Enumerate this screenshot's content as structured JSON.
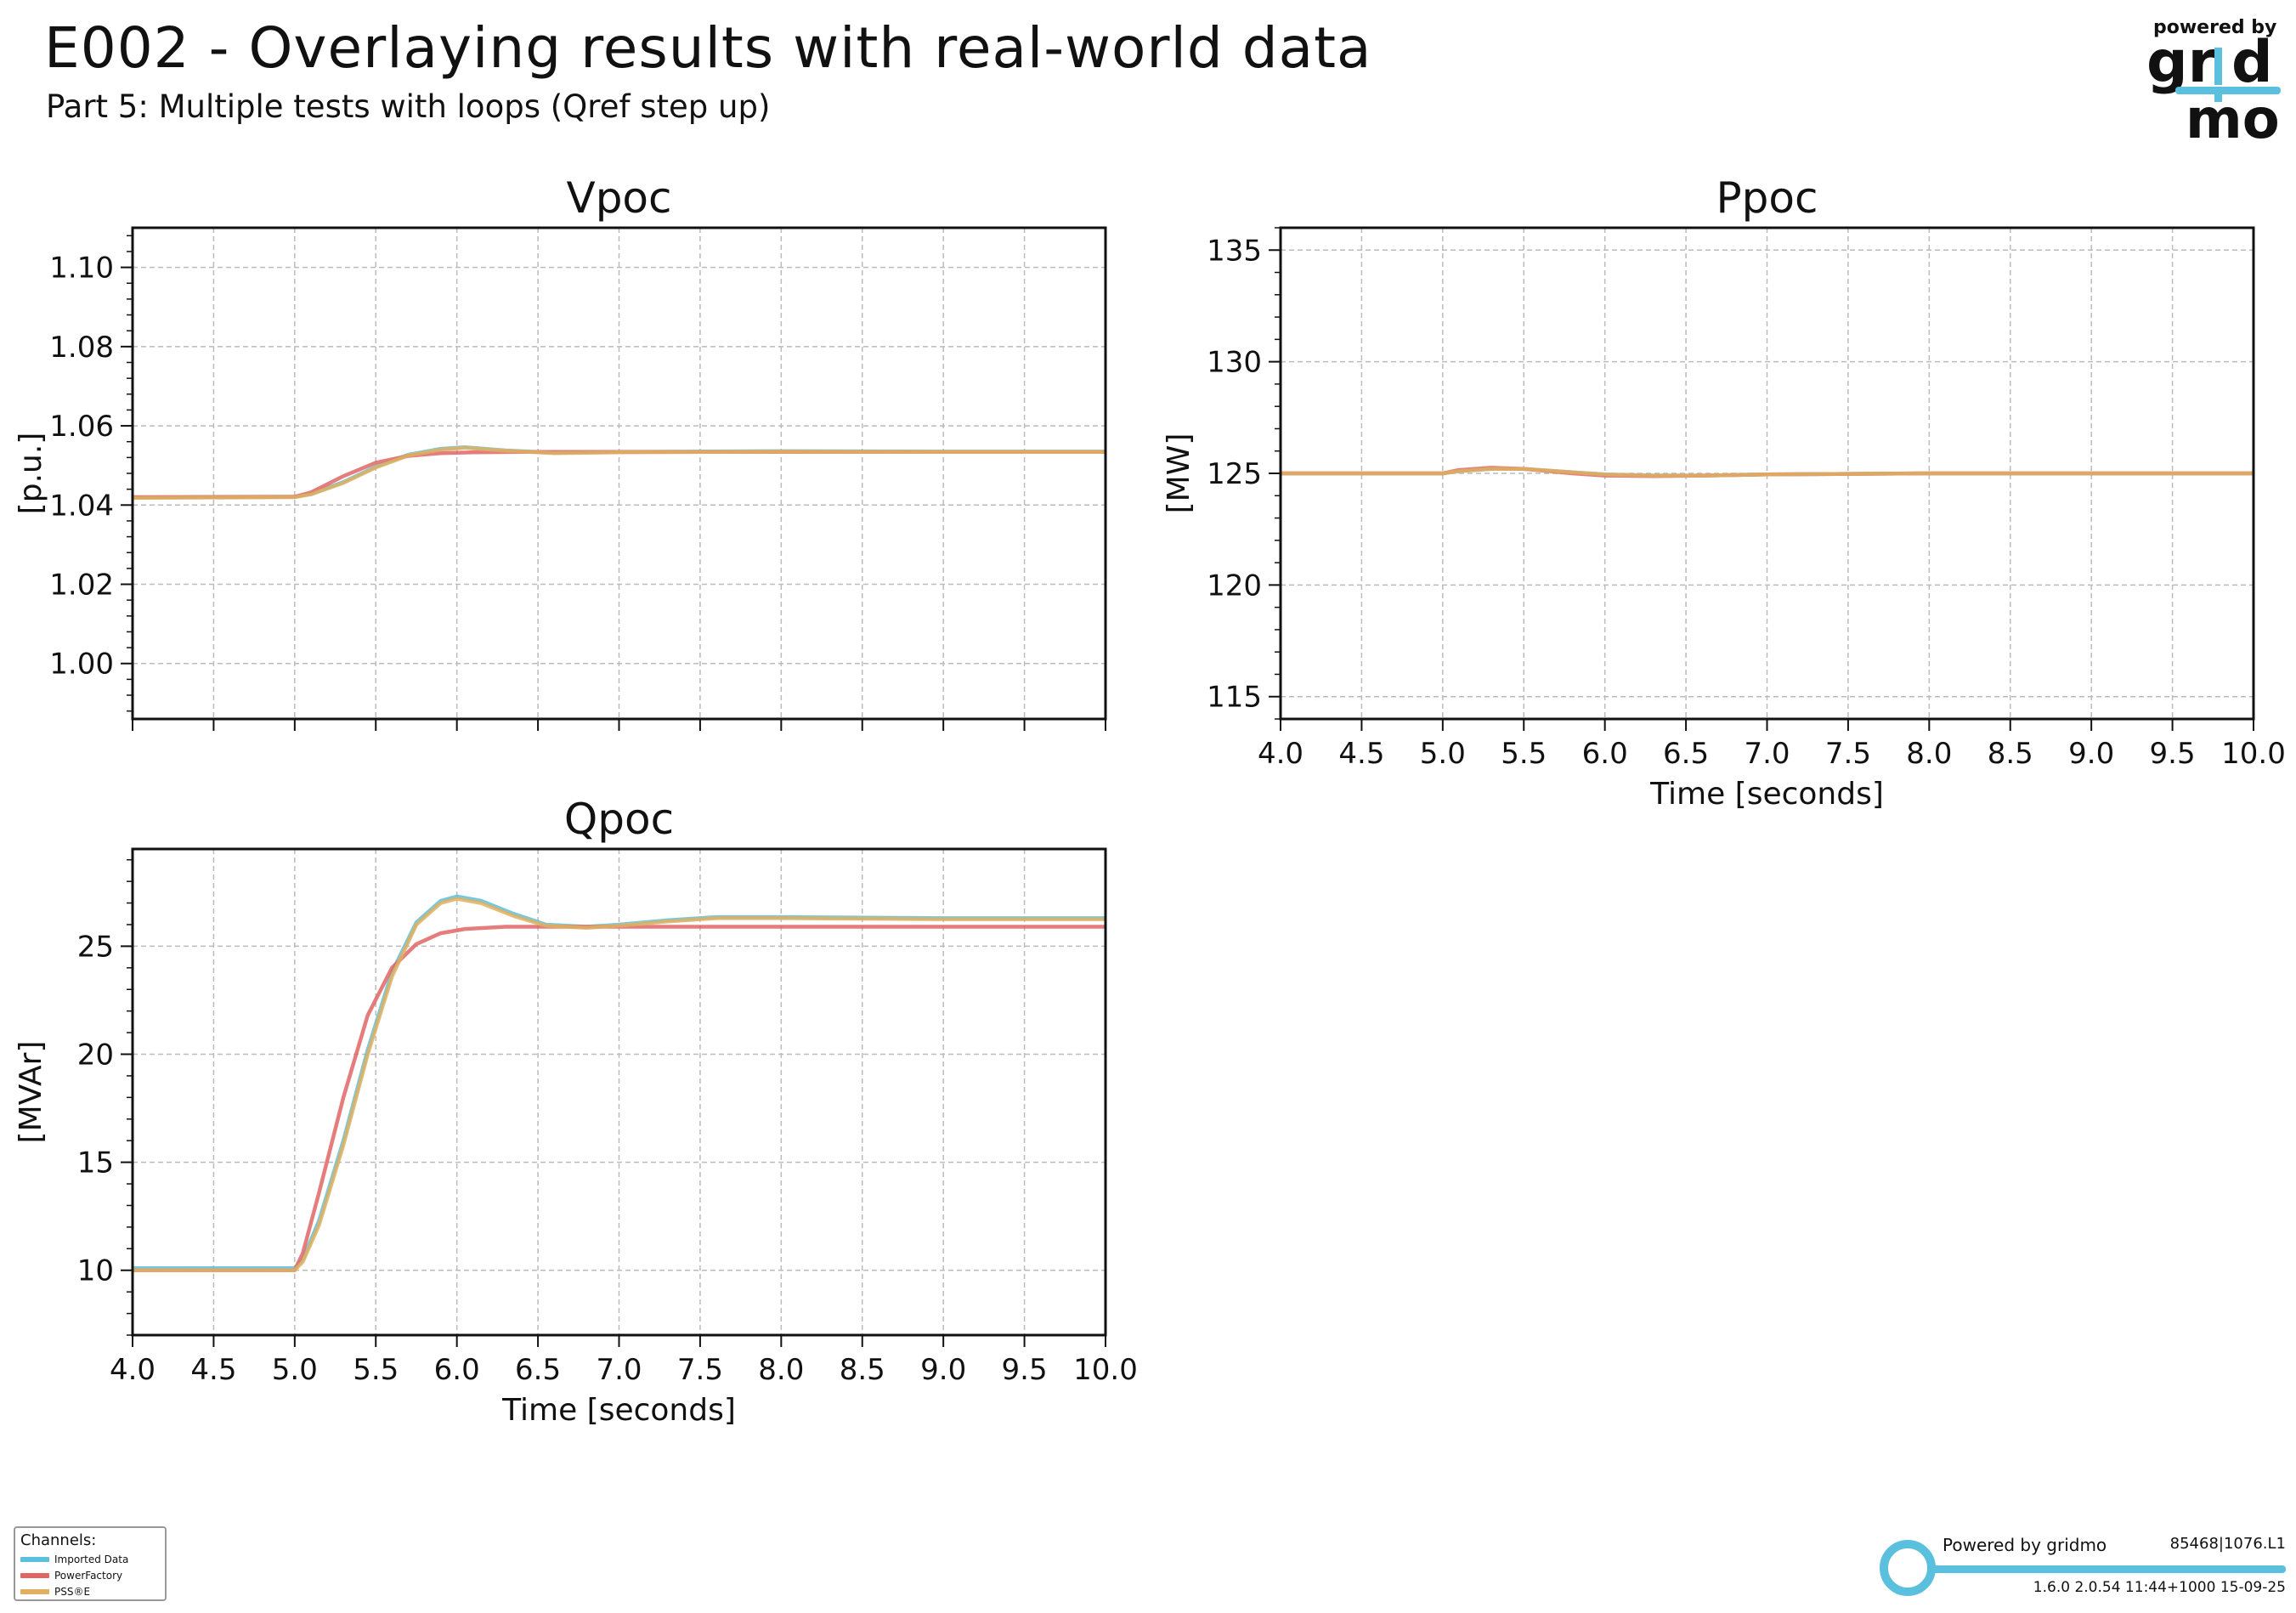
{
  "header": {
    "title": "E002 - Overlaying results with real-world data",
    "subtitle": "Part 5: Multiple tests with loops (Qref step up)"
  },
  "logo": {
    "powered_by": "powered by",
    "brand": "gridmo",
    "icon": "gridmo-logo"
  },
  "legend": {
    "title": "Channels:",
    "items": [
      {
        "label": "Imported Data",
        "color": "#5bc0de"
      },
      {
        "label": "PowerFactory",
        "color": "#e06666"
      },
      {
        "label": "PSS®E",
        "color": "#e0b060"
      }
    ]
  },
  "footer": {
    "powered_by": "Powered by gridmo",
    "id": "85468|1076.L1",
    "version": "1.6.0  2.0.54  11:44+1000 15-09-25"
  },
  "chart_data": [
    {
      "type": "line",
      "title": "Vpoc",
      "xlabel": "",
      "ylabel": "[p.u.]",
      "xlim": [
        4.0,
        10.0
      ],
      "ylim": [
        0.986,
        1.11
      ],
      "xticks": [
        4.0,
        4.5,
        5.0,
        5.5,
        6.0,
        6.5,
        7.0,
        7.5,
        8.0,
        8.5,
        9.0,
        9.5,
        10.0
      ],
      "yticks": [
        1.0,
        1.02,
        1.04,
        1.06,
        1.08,
        1.1
      ],
      "ytick_labels": [
        "1.00",
        "1.02",
        "1.04",
        "1.06",
        "1.08",
        "1.10"
      ],
      "show_xtick_labels": false,
      "grid": true,
      "series": [
        {
          "name": "Imported Data",
          "color": "#5bc0de",
          "x": [
            4.0,
            5.0,
            5.1,
            5.3,
            5.5,
            5.7,
            5.9,
            6.05,
            6.3,
            6.6,
            7.0,
            8.0,
            9.0,
            10.0
          ],
          "y": [
            1.0419,
            1.0421,
            1.0428,
            1.0458,
            1.0497,
            1.0527,
            1.0542,
            1.0546,
            1.0538,
            1.0532,
            1.0534,
            1.0536,
            1.0535,
            1.0535
          ]
        },
        {
          "name": "PowerFactory",
          "color": "#e06666",
          "x": [
            4.0,
            5.0,
            5.1,
            5.3,
            5.5,
            5.7,
            5.9,
            6.1,
            6.4,
            7.0,
            8.0,
            9.0,
            10.0
          ],
          "y": [
            1.042,
            1.0421,
            1.0432,
            1.0473,
            1.0507,
            1.0524,
            1.0531,
            1.0533,
            1.0534,
            1.0534,
            1.0534,
            1.0534,
            1.0534
          ]
        },
        {
          "name": "PSS®E",
          "color": "#e0b060",
          "x": [
            4.0,
            5.0,
            5.1,
            5.3,
            5.5,
            5.7,
            5.9,
            6.05,
            6.3,
            6.6,
            7.0,
            8.0,
            9.0,
            10.0
          ],
          "y": [
            1.0418,
            1.042,
            1.0427,
            1.0456,
            1.0495,
            1.0525,
            1.054,
            1.0545,
            1.0537,
            1.0531,
            1.0533,
            1.0535,
            1.0534,
            1.0534
          ]
        }
      ]
    },
    {
      "type": "line",
      "title": "Ppoc",
      "xlabel": "Time [seconds]",
      "ylabel": "[MW]",
      "xlim": [
        4.0,
        10.0
      ],
      "ylim": [
        114.0,
        136.0
      ],
      "xticks": [
        4.0,
        4.5,
        5.0,
        5.5,
        6.0,
        6.5,
        7.0,
        7.5,
        8.0,
        8.5,
        9.0,
        9.5,
        10.0
      ],
      "xtick_labels": [
        "4.0",
        "4.5",
        "5.0",
        "5.5",
        "6.0",
        "6.5",
        "7.0",
        "7.5",
        "8.0",
        "8.5",
        "9.0",
        "9.5",
        "10.0"
      ],
      "yticks": [
        115,
        120,
        125,
        130,
        135
      ],
      "ytick_labels": [
        "115",
        "120",
        "125",
        "130",
        "135"
      ],
      "show_xtick_labels": true,
      "grid": true,
      "series": [
        {
          "name": "Imported Data",
          "color": "#5bc0de",
          "x": [
            4.0,
            5.0,
            5.1,
            5.3,
            5.5,
            5.8,
            6.0,
            6.3,
            6.6,
            7.0,
            8.0,
            9.0,
            10.0
          ],
          "y": [
            125.0,
            125.0,
            125.1,
            125.2,
            125.2,
            125.05,
            124.95,
            124.9,
            124.9,
            124.95,
            125.0,
            125.0,
            125.0
          ]
        },
        {
          "name": "PowerFactory",
          "color": "#e06666",
          "x": [
            4.0,
            5.0,
            5.1,
            5.3,
            5.5,
            5.8,
            6.0,
            6.3,
            6.6,
            7.0,
            8.0,
            9.0,
            10.0
          ],
          "y": [
            125.0,
            125.0,
            125.15,
            125.25,
            125.2,
            125.0,
            124.9,
            124.88,
            124.9,
            124.95,
            125.0,
            125.0,
            125.0
          ]
        },
        {
          "name": "PSS®E",
          "color": "#e0b060",
          "x": [
            4.0,
            5.0,
            5.1,
            5.3,
            5.5,
            5.8,
            6.0,
            6.3,
            6.6,
            7.0,
            8.0,
            9.0,
            10.0
          ],
          "y": [
            125.0,
            125.0,
            125.1,
            125.2,
            125.2,
            125.05,
            124.95,
            124.9,
            124.9,
            124.95,
            125.0,
            125.0,
            125.0
          ]
        }
      ]
    },
    {
      "type": "line",
      "title": "Qpoc",
      "xlabel": "Time [seconds]",
      "ylabel": "[MVAr]",
      "xlim": [
        4.0,
        10.0
      ],
      "ylim": [
        7.0,
        29.5
      ],
      "xticks": [
        4.0,
        4.5,
        5.0,
        5.5,
        6.0,
        6.5,
        7.0,
        7.5,
        8.0,
        8.5,
        9.0,
        9.5,
        10.0
      ],
      "xtick_labels": [
        "4.0",
        "4.5",
        "5.0",
        "5.5",
        "6.0",
        "6.5",
        "7.0",
        "7.5",
        "8.0",
        "8.5",
        "9.0",
        "9.5",
        "10.0"
      ],
      "yticks": [
        10,
        15,
        20,
        25
      ],
      "ytick_labels": [
        "10",
        "15",
        "20",
        "25"
      ],
      "show_xtick_labels": true,
      "grid": true,
      "series": [
        {
          "name": "Imported Data",
          "color": "#5bc0de",
          "x": [
            4.0,
            5.0,
            5.05,
            5.15,
            5.3,
            5.45,
            5.6,
            5.75,
            5.9,
            6.0,
            6.15,
            6.35,
            6.55,
            6.8,
            7.0,
            7.3,
            7.6,
            8.0,
            9.0,
            10.0
          ],
          "y": [
            10.1,
            10.1,
            10.5,
            12.3,
            16.0,
            20.2,
            23.8,
            26.1,
            27.1,
            27.3,
            27.1,
            26.5,
            26.0,
            25.9,
            26.0,
            26.2,
            26.35,
            26.35,
            26.3,
            26.3
          ]
        },
        {
          "name": "PowerFactory",
          "color": "#e06666",
          "x": [
            4.0,
            5.0,
            5.05,
            5.15,
            5.3,
            5.45,
            5.6,
            5.75,
            5.9,
            6.05,
            6.3,
            6.6,
            7.0,
            8.0,
            9.0,
            10.0
          ],
          "y": [
            10.0,
            10.0,
            10.8,
            13.6,
            18.0,
            21.8,
            24.0,
            25.1,
            25.6,
            25.8,
            25.9,
            25.9,
            25.9,
            25.9,
            25.9,
            25.9
          ]
        },
        {
          "name": "PSS®E",
          "color": "#e0b060",
          "x": [
            4.0,
            5.0,
            5.05,
            5.15,
            5.3,
            5.45,
            5.6,
            5.75,
            5.9,
            6.0,
            6.15,
            6.35,
            6.55,
            6.8,
            7.0,
            7.3,
            7.6,
            8.0,
            9.0,
            10.0
          ],
          "y": [
            10.0,
            10.0,
            10.4,
            12.1,
            15.8,
            20.0,
            23.6,
            26.0,
            27.0,
            27.2,
            27.0,
            26.4,
            25.95,
            25.85,
            25.95,
            26.15,
            26.3,
            26.3,
            26.25,
            26.25
          ]
        }
      ]
    }
  ]
}
